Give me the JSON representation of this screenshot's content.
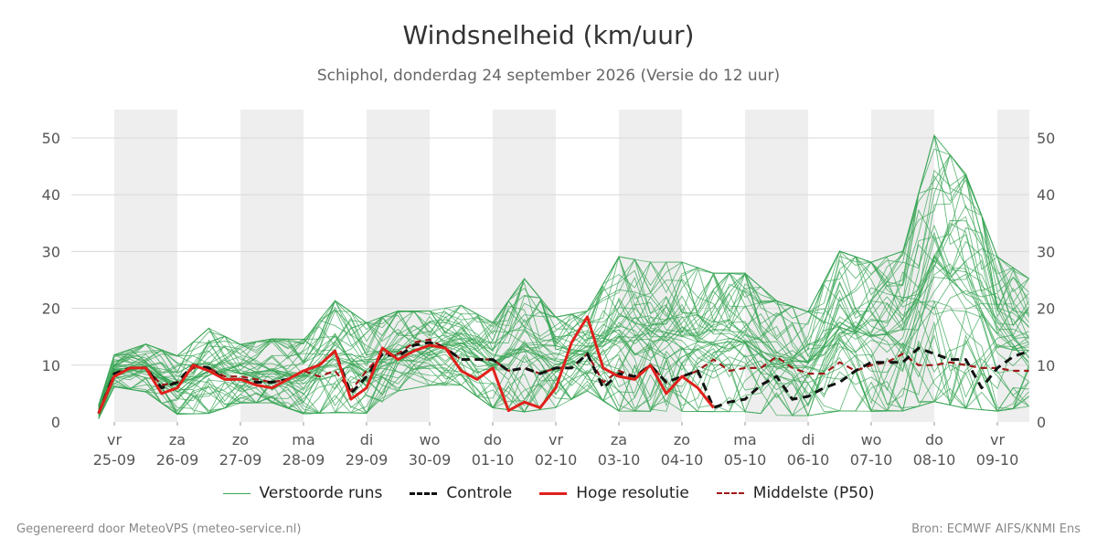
{
  "title": "Windsnelheid (km/uur)",
  "subtitle": "Schiphol, donderdag 24 september 2026 (Versie do 12 uur)",
  "footer": {
    "left": "Gegenereerd door MeteoVPS (meteo-service.nl)",
    "right": "Bron: ECMWF AIFS/KNMI Ens"
  },
  "colors": {
    "ensemble": "#3aa655",
    "control": "#111111",
    "high_res": "#e0201b",
    "median": "#a01818",
    "shade": "#eeeeee",
    "grid": "#d8d8d8"
  },
  "chart_data": {
    "type": "line",
    "title": "Windsnelheid (km/uur)",
    "ylabel": "",
    "ylim": [
      0,
      55
    ],
    "yticks": [
      0,
      10,
      20,
      30,
      40,
      50
    ],
    "xlim": [
      -0.25,
      14.5
    ],
    "grid": true,
    "legend_position": "bottom",
    "x_unit": "days from vr 25-09 00:00",
    "day_labels": [
      {
        "weekday": "vr",
        "date": "25-09"
      },
      {
        "weekday": "za",
        "date": "26-09"
      },
      {
        "weekday": "zo",
        "date": "27-09"
      },
      {
        "weekday": "ma",
        "date": "28-09"
      },
      {
        "weekday": "di",
        "date": "29-09"
      },
      {
        "weekday": "wo",
        "date": "30-09"
      },
      {
        "weekday": "do",
        "date": "01-10"
      },
      {
        "weekday": "vr",
        "date": "02-10"
      },
      {
        "weekday": "za",
        "date": "03-10"
      },
      {
        "weekday": "zo",
        "date": "04-10"
      },
      {
        "weekday": "ma",
        "date": "05-10"
      },
      {
        "weekday": "di",
        "date": "06-10"
      },
      {
        "weekday": "wo",
        "date": "07-10"
      },
      {
        "weekday": "do",
        "date": "08-10"
      },
      {
        "weekday": "vr",
        "date": "09-10"
      }
    ],
    "legend": [
      {
        "key": "ensemble",
        "label": "Verstoorde runs"
      },
      {
        "key": "control",
        "label": "Controle"
      },
      {
        "key": "high_res",
        "label": "Hoge resolutie"
      },
      {
        "key": "median",
        "label": "Middelste (P50)"
      }
    ],
    "series": [
      {
        "name": "Hoge resolutie",
        "key": "high_res",
        "x": [
          -0.25,
          0,
          0.25,
          0.5,
          0.75,
          1,
          1.25,
          1.5,
          1.75,
          2,
          2.25,
          2.5,
          2.75,
          3,
          3.25,
          3.5,
          3.75,
          4,
          4.25,
          4.5,
          4.75,
          5,
          5.25,
          5.5,
          5.75,
          6,
          6.25,
          6.5,
          6.75,
          7,
          7.25,
          7.5,
          7.75,
          8,
          8.25,
          8.5,
          8.75,
          9,
          9.25,
          9.5
        ],
        "y": [
          1.5,
          8,
          9.5,
          9.5,
          5,
          6,
          10,
          9,
          7.5,
          7.5,
          6.5,
          6,
          7.5,
          9,
          10,
          12.5,
          4,
          6,
          13,
          11,
          12.5,
          13.5,
          13,
          9,
          7.5,
          9.5,
          2,
          3.5,
          2.5,
          6,
          14,
          18.5,
          9.5,
          8,
          7.5,
          10,
          5,
          8,
          6,
          2.5
        ]
      },
      {
        "name": "Controle",
        "key": "control",
        "x": [
          -0.25,
          0,
          0.25,
          0.5,
          0.75,
          1,
          1.25,
          1.5,
          1.75,
          2,
          2.25,
          2.5,
          2.75,
          3,
          3.25,
          3.5,
          3.75,
          4,
          4.25,
          4.5,
          4.75,
          5,
          5.25,
          5.5,
          5.75,
          6,
          6.25,
          6.5,
          6.75,
          7,
          7.25,
          7.5,
          7.75,
          8,
          8.25,
          8.5,
          8.75,
          9,
          9.25,
          9.5,
          9.75,
          10,
          10.25,
          10.5,
          10.75,
          11,
          11.25,
          11.5,
          11.75,
          12,
          12.25,
          12.5,
          12.75,
          13,
          13.25,
          13.5,
          13.75,
          14,
          14.25,
          14.5
        ],
        "y": [
          1.5,
          8.5,
          9.5,
          9.5,
          6,
          7,
          10,
          9.5,
          7.5,
          7.5,
          7,
          7,
          7.5,
          9,
          10,
          12.5,
          5,
          8,
          12,
          11.5,
          13.5,
          14,
          13,
          11,
          11,
          11,
          9,
          9.5,
          8.5,
          9.5,
          9.5,
          12,
          6,
          8.5,
          8,
          10,
          7,
          8,
          9,
          2.5,
          3.5,
          4,
          6.5,
          8,
          4,
          4.5,
          6,
          7,
          9,
          10.5,
          10.5,
          10.5,
          13,
          12,
          11,
          11,
          6,
          9.5,
          11.5,
          12.5
        ]
      },
      {
        "name": "Middelste (P50)",
        "key": "median",
        "x": [
          -0.25,
          0,
          0.25,
          0.5,
          0.75,
          1,
          1.25,
          1.5,
          1.75,
          2,
          2.25,
          2.5,
          2.75,
          3,
          3.25,
          3.5,
          3.75,
          4,
          4.25,
          4.5,
          4.75,
          5,
          5.25,
          5.5,
          5.75,
          6,
          6.25,
          6.5,
          6.75,
          7,
          7.25,
          7.5,
          7.75,
          8,
          8.25,
          8.5,
          8.75,
          9,
          9.25,
          9.5,
          9.75,
          10,
          10.25,
          10.5,
          10.75,
          11,
          11.25,
          11.5,
          11.75,
          12,
          12.25,
          12.5,
          12.75,
          13,
          13.25,
          13.5,
          13.75,
          14,
          14.25,
          14.5
        ],
        "y": [
          1.5,
          8.5,
          9.5,
          9.5,
          6.5,
          7,
          9.5,
          9.5,
          8,
          8,
          7.5,
          7,
          7.5,
          9,
          8,
          9,
          5.5,
          9,
          12,
          12,
          14,
          14.5,
          13,
          11,
          11,
          11,
          9,
          9.5,
          8.5,
          9.5,
          9.5,
          12,
          7,
          9,
          8,
          10,
          7,
          8,
          9,
          11,
          9,
          9.5,
          9.5,
          11.5,
          9.5,
          8.5,
          8.5,
          10.5,
          9,
          10,
          10.5,
          12,
          10,
          10,
          10.5,
          10,
          9.5,
          9.5,
          9,
          9
        ]
      }
    ],
    "ensemble_series_count": 50,
    "ensemble_envelope": {
      "description": "perturbed runs (Verstoorde runs)",
      "x": [
        -0.25,
        0,
        0.5,
        1,
        1.5,
        2,
        2.5,
        3,
        3.5,
        4,
        4.5,
        5,
        5.5,
        6,
        6.5,
        7,
        7.5,
        8,
        8.5,
        9,
        9.5,
        10,
        10.5,
        11,
        11.5,
        12,
        12.5,
        13,
        13.5,
        14,
        14.5
      ],
      "y_min": [
        0.5,
        6,
        5,
        1,
        1,
        3,
        3,
        1,
        1,
        1,
        5,
        6,
        6,
        2,
        1,
        2,
        5,
        1,
        1,
        1,
        1,
        1,
        0.5,
        0.5,
        1,
        1,
        1,
        2,
        1,
        1,
        2
      ],
      "y_max": [
        3,
        12,
        14,
        12,
        17,
        14,
        15,
        15,
        22,
        18,
        20,
        20,
        21,
        18,
        26,
        19,
        20,
        30,
        29,
        29,
        27,
        27,
        22,
        20,
        31,
        29,
        31,
        52,
        45,
        30,
        26
      ]
    }
  }
}
